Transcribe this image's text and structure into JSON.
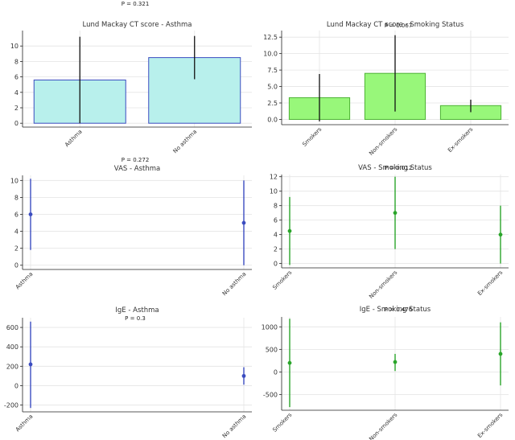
{
  "chart_data": [
    {
      "id": "ct_asthma",
      "type": "bar",
      "title": "Lund Mackay CT score - Asthma",
      "pvalue": "P = 0.321",
      "categories": [
        "Asthma",
        "No asthma"
      ],
      "values": [
        5.6,
        8.5
      ],
      "error_low": [
        0.0,
        5.7
      ],
      "error_high": [
        11.2,
        11.3
      ],
      "ylim": [
        -0.5,
        12.0
      ],
      "yticks": [
        0,
        2,
        4,
        6,
        8,
        10
      ],
      "fill": "#b8f0ec",
      "edge": "#3b4cc0"
    },
    {
      "id": "ct_smoking",
      "type": "bar",
      "title": "Lund Mackay CT score - Smoking Status",
      "pvalue": "P = 0.067",
      "categories": [
        "Smokers",
        "Non-smokers",
        "Ex-smokers"
      ],
      "values": [
        3.3,
        7.0,
        2.1
      ],
      "error_low": [
        -0.3,
        1.2,
        1.1
      ],
      "error_high": [
        6.9,
        12.8,
        3.0
      ],
      "ylim": [
        -0.8,
        13.5
      ],
      "yticks": [
        0.0,
        2.5,
        5.0,
        7.5,
        10.0,
        12.5
      ],
      "fill": "#98f77a",
      "edge": "#4db234"
    },
    {
      "id": "vas_asthma",
      "type": "errorbar",
      "title": "VAS - Asthma",
      "pvalue": "P = 0.272",
      "categories": [
        "Asthma",
        "No asthma"
      ],
      "values": [
        6.0,
        5.0
      ],
      "error_low": [
        1.8,
        0.0
      ],
      "error_high": [
        10.2,
        10.0
      ],
      "ylim": [
        -0.5,
        10.6
      ],
      "yticks": [
        0,
        2,
        4,
        6,
        8,
        10
      ],
      "color": "#3b4cc0"
    },
    {
      "id": "vas_smoking",
      "type": "errorbar",
      "title": "VAS - Smoking Status",
      "pvalue": "P = 0.012",
      "categories": [
        "Smokers",
        "Non-smokers",
        "Ex-smokers"
      ],
      "values": [
        4.5,
        7.0,
        4.0
      ],
      "error_low": [
        -0.2,
        2.0,
        0.0
      ],
      "error_high": [
        9.2,
        12.0,
        8.0
      ],
      "ylim": [
        -0.6,
        12.3
      ],
      "yticks": [
        0,
        2,
        4,
        6,
        8,
        10,
        12
      ],
      "color": "#2aa52a"
    },
    {
      "id": "ige_asthma",
      "type": "errorbar",
      "title": "IgE - Asthma",
      "pvalue": "P = 0.3",
      "categories": [
        "Asthma",
        "No asthma"
      ],
      "values": [
        220,
        100
      ],
      "error_low": [
        -230,
        10
      ],
      "error_high": [
        660,
        190
      ],
      "ylim": [
        -270,
        700
      ],
      "yticks": [
        -200,
        0,
        200,
        400,
        600
      ],
      "color": "#3b4cc0"
    },
    {
      "id": "ige_smoking",
      "type": "errorbar",
      "title": "IgE - Smoking Status",
      "pvalue": "P = 0.476",
      "categories": [
        "Smokers",
        "Non-smokers",
        "Ex-smokers"
      ],
      "values": [
        200,
        220,
        400
      ],
      "error_low": [
        -780,
        20,
        -300
      ],
      "error_high": [
        1180,
        400,
        1100
      ],
      "ylim": [
        -850,
        1220
      ],
      "yticks": [
        -500,
        0,
        500,
        1000
      ],
      "color": "#2aa52a"
    }
  ]
}
